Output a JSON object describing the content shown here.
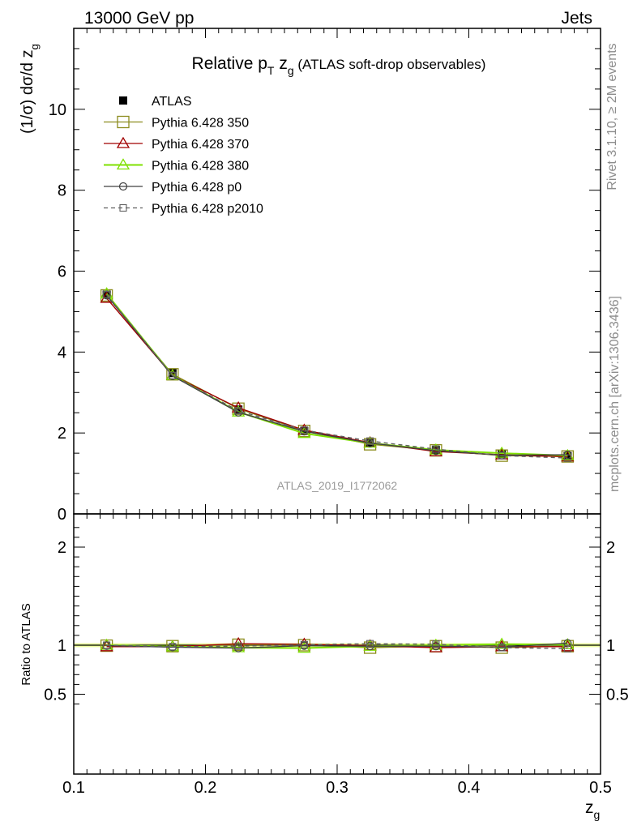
{
  "header": {
    "left": "13000 GeV pp",
    "right": "Jets"
  },
  "side_text": {
    "rivet": "Rivet 3.1.10, ≥ 2M events",
    "mcplots": "mcplots.cern.ch [arXiv:1306.3436]"
  },
  "watermark": "ATLAS_2019_I1772062",
  "colors": {
    "ATLAS": "#000000",
    "p350": "#8c8c1e",
    "p370": "#a00000",
    "p380": "#7fe000",
    "p0": "#404040",
    "p2010": "#606060",
    "band": "#e6ff8c"
  },
  "chart_data": [
    {
      "type": "line",
      "title": {
        "main": "Relative p",
        "sub1": "T",
        "mid": " z",
        "sub2": "g",
        "rest": " (ATLAS soft-drop observables)"
      },
      "ylabel": {
        "main": "(1/σ) dσ/d z",
        "sub": "g"
      },
      "xlim": [
        0.1,
        0.5
      ],
      "ylim": [
        0,
        12
      ],
      "yticks": [
        0,
        2,
        4,
        6,
        8,
        10
      ],
      "x": [
        0.125,
        0.175,
        0.225,
        0.275,
        0.325,
        0.375,
        0.425,
        0.475
      ],
      "series": [
        {
          "name": "ATLAS",
          "key": "ATLAS",
          "marker": "square-filled",
          "line": "none",
          "values": [
            5.42,
            3.48,
            2.58,
            2.05,
            1.77,
            1.58,
            1.48,
            1.43
          ]
        },
        {
          "name": "Pythia 6.428 350",
          "key": "p350",
          "marker": "square-open",
          "line": "solid",
          "values": [
            5.4,
            3.45,
            2.6,
            2.05,
            1.72,
            1.57,
            1.44,
            1.42
          ]
        },
        {
          "name": "Pythia 6.428 370",
          "key": "p370",
          "marker": "triangle-open",
          "line": "solid",
          "values": [
            5.33,
            3.42,
            2.62,
            2.07,
            1.76,
            1.54,
            1.46,
            1.41
          ]
        },
        {
          "name": "Pythia 6.428 380",
          "key": "p380",
          "marker": "triangle-open",
          "line": "solid",
          "values": [
            5.44,
            3.42,
            2.52,
            1.99,
            1.75,
            1.58,
            1.5,
            1.44
          ]
        },
        {
          "name": "Pythia 6.428 p0",
          "key": "p0",
          "marker": "circle-open",
          "line": "solid",
          "values": [
            5.4,
            3.41,
            2.51,
            2.04,
            1.75,
            1.56,
            1.45,
            1.46
          ]
        },
        {
          "name": "Pythia 6.428 p2010",
          "key": "p2010",
          "marker": "square-open-small",
          "line": "dashed",
          "values": [
            5.42,
            3.42,
            2.55,
            2.07,
            1.8,
            1.6,
            1.44,
            1.38
          ]
        }
      ]
    },
    {
      "type": "line",
      "ylabel": "Ratio to ATLAS",
      "xlabel": {
        "main": "z",
        "sub": "g"
      },
      "xlim": [
        0.1,
        0.5
      ],
      "ylim": [
        0.35,
        2.3
      ],
      "yticks": [
        0.5,
        1,
        2
      ],
      "ytick_labels": [
        "0.5",
        "1",
        "2"
      ],
      "xticks": [
        0.1,
        0.2,
        0.3,
        0.4,
        0.5
      ],
      "xtick_labels": [
        "0.1",
        "0.2",
        "0.3",
        "0.4",
        "0.5"
      ],
      "band": [
        0.98,
        1.02
      ],
      "x": [
        0.125,
        0.175,
        0.225,
        0.275,
        0.325,
        0.375,
        0.425,
        0.475
      ],
      "series": [
        {
          "name": "Pythia 6.428 350",
          "key": "p350",
          "marker": "square-open",
          "line": "solid",
          "values": [
            0.995,
            0.99,
            1.005,
            1.0,
            0.975,
            0.99,
            0.975,
            0.99
          ]
        },
        {
          "name": "Pythia 6.428 370",
          "key": "p370",
          "marker": "triangle-open",
          "line": "solid",
          "values": [
            0.985,
            0.985,
            1.015,
            1.01,
            0.995,
            0.975,
            0.985,
            0.985
          ]
        },
        {
          "name": "Pythia 6.428 380",
          "key": "p380",
          "marker": "triangle-open",
          "line": "solid",
          "values": [
            1.0,
            0.985,
            0.975,
            0.97,
            0.99,
            1.0,
            1.01,
            1.005
          ]
        },
        {
          "name": "Pythia 6.428 p0",
          "key": "p0",
          "marker": "circle-open",
          "line": "solid",
          "values": [
            0.995,
            0.98,
            0.97,
            0.995,
            0.99,
            0.99,
            0.98,
            1.02
          ]
        },
        {
          "name": "Pythia 6.428 p2010",
          "key": "p2010",
          "marker": "square-open-small",
          "line": "dashed",
          "values": [
            1.0,
            0.985,
            0.99,
            1.005,
            1.015,
            1.01,
            0.975,
            0.965
          ]
        }
      ]
    }
  ]
}
